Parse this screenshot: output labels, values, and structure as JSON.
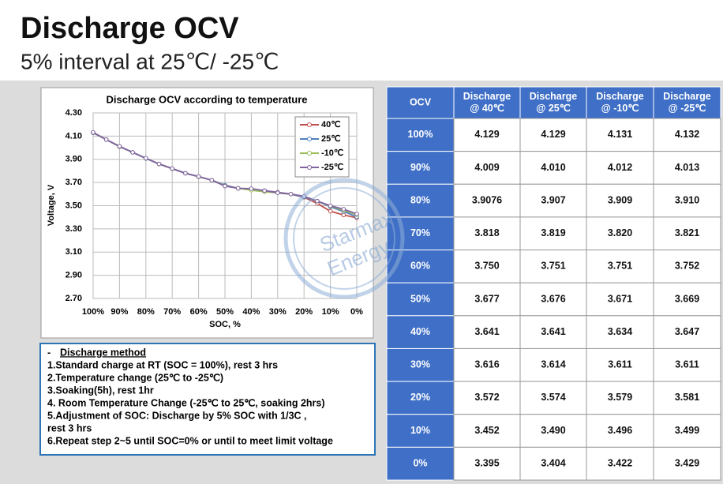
{
  "header": {
    "title": "Discharge OCV",
    "subtitle": "5% interval at 25℃/ -25℃"
  },
  "chart_data": {
    "type": "line",
    "title": "Discharge OCV according to temperature",
    "x_label": "SOC, %",
    "y_label": "Voltage, V",
    "x": [
      100,
      95,
      90,
      85,
      80,
      75,
      70,
      65,
      60,
      55,
      50,
      45,
      40,
      35,
      30,
      25,
      20,
      15,
      10,
      5,
      0
    ],
    "xlim": [
      100,
      0
    ],
    "xticks": [
      {
        "value": 100,
        "label": "100%"
      },
      {
        "value": 90,
        "label": "90%"
      },
      {
        "value": 80,
        "label": "80%"
      },
      {
        "value": 70,
        "label": "70%"
      },
      {
        "value": 60,
        "label": "60%"
      },
      {
        "value": 50,
        "label": "50%"
      },
      {
        "value": 40,
        "label": "40%"
      },
      {
        "value": 30,
        "label": "30%"
      },
      {
        "value": 20,
        "label": "20%"
      },
      {
        "value": 10,
        "label": "10%"
      },
      {
        "value": 0,
        "label": "0%"
      }
    ],
    "ylim": [
      2.7,
      4.3
    ],
    "yticks": [
      {
        "value": 2.7,
        "label": "2.70"
      },
      {
        "value": 2.9,
        "label": "2.90"
      },
      {
        "value": 3.1,
        "label": "3.10"
      },
      {
        "value": 3.3,
        "label": "3.30"
      },
      {
        "value": 3.5,
        "label": "3.50"
      },
      {
        "value": 3.7,
        "label": "3.70"
      },
      {
        "value": 3.9,
        "label": "3.90"
      },
      {
        "value": 4.1,
        "label": "4.10"
      },
      {
        "value": 4.3,
        "label": "4.30"
      }
    ],
    "grid": true,
    "legend": "upper right",
    "series": [
      {
        "name": "40℃",
        "color": "#c0504d",
        "values": [
          4.129,
          4.07,
          4.009,
          3.96,
          3.908,
          3.86,
          3.818,
          3.78,
          3.75,
          3.72,
          3.677,
          3.65,
          3.641,
          3.63,
          3.616,
          3.6,
          3.572,
          3.52,
          3.452,
          3.42,
          3.395
        ]
      },
      {
        "name": "25℃",
        "color": "#4f81bd",
        "values": [
          4.129,
          4.07,
          4.01,
          3.96,
          3.907,
          3.86,
          3.819,
          3.78,
          3.751,
          3.72,
          3.676,
          3.65,
          3.641,
          3.63,
          3.614,
          3.6,
          3.574,
          3.54,
          3.49,
          3.45,
          3.404
        ]
      },
      {
        "name": "-10℃",
        "color": "#9bbb59",
        "values": [
          4.131,
          4.07,
          4.012,
          3.96,
          3.909,
          3.86,
          3.82,
          3.78,
          3.751,
          3.72,
          3.671,
          3.65,
          3.634,
          3.62,
          3.611,
          3.6,
          3.579,
          3.54,
          3.496,
          3.46,
          3.422
        ]
      },
      {
        "name": "-25℃",
        "color": "#8064a2",
        "values": [
          4.132,
          4.07,
          4.013,
          3.96,
          3.91,
          3.86,
          3.821,
          3.78,
          3.752,
          3.72,
          3.669,
          3.65,
          3.647,
          3.63,
          3.611,
          3.6,
          3.581,
          3.54,
          3.499,
          3.47,
          3.429
        ]
      }
    ]
  },
  "table": {
    "header": [
      "OCV",
      "Discharge\n@ 40℃",
      "Discharge\n@ 25℃",
      "Discharge\n@ -10℃",
      "Discharge\n@ -25℃"
    ],
    "rows": [
      [
        "100%",
        "4.129",
        "4.129",
        "4.131",
        "4.132"
      ],
      [
        "90%",
        "4.009",
        "4.010",
        "4.012",
        "4.013"
      ],
      [
        "80%",
        "3.9076",
        "3.907",
        "3.909",
        "3.910"
      ],
      [
        "70%",
        "3.818",
        "3.819",
        "3.820",
        "3.821"
      ],
      [
        "60%",
        "3.750",
        "3.751",
        "3.751",
        "3.752"
      ],
      [
        "50%",
        "3.677",
        "3.676",
        "3.671",
        "3.669"
      ],
      [
        "40%",
        "3.641",
        "3.641",
        "3.634",
        "3.647"
      ],
      [
        "30%",
        "3.616",
        "3.614",
        "3.611",
        "3.611"
      ],
      [
        "20%",
        "3.572",
        "3.574",
        "3.579",
        "3.581"
      ],
      [
        "10%",
        "3.452",
        "3.490",
        "3.496",
        "3.499"
      ],
      [
        "0%",
        "3.395",
        "3.404",
        "3.422",
        "3.429"
      ]
    ]
  },
  "method": {
    "bullet": "-",
    "title": "Discharge method",
    "lines": [
      "1.Standard charge at RT (SOC = 100%), rest 3 hrs",
      "2.Temperature change (25℃ to -25℃)",
      "3.Soaking(5h), rest 1hr",
      "4. Room Temperature Change (-25℃ to 25℃, soaking 2hrs)",
      "5.Adjustment of SOC: Discharge by 5% SOC with 1/3C ,",
      "   rest 3 hrs",
      "6.Repeat step 2~5 until SOC=0% or until to meet limit voltage"
    ]
  },
  "watermark": [
    "Starmax",
    "Energy"
  ]
}
